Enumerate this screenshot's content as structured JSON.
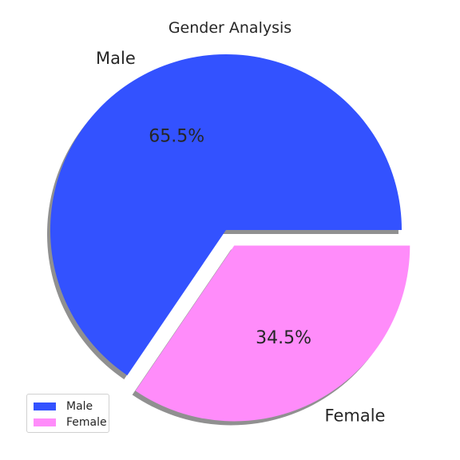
{
  "chart_data": {
    "type": "pie",
    "title": "Gender Analysis",
    "categories": [
      "Male",
      "Female"
    ],
    "values": [
      65.5,
      34.5
    ],
    "value_labels": [
      "65.5%",
      "34.5%"
    ],
    "colors": [
      "#3352ff",
      "#ff8cfa"
    ],
    "exploded": [
      "Female"
    ],
    "shadow": true,
    "legend": {
      "position": "lower-left",
      "entries": [
        "Male",
        "Female"
      ]
    }
  }
}
